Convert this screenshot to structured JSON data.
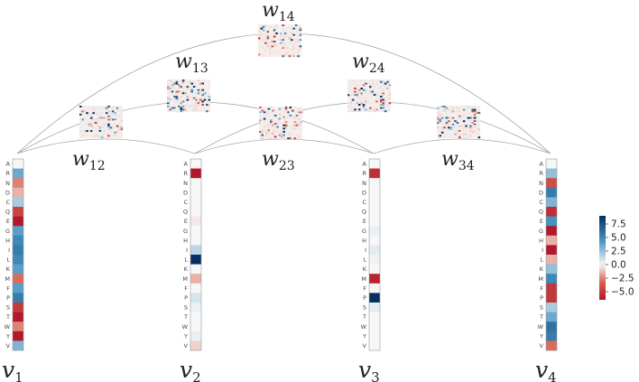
{
  "amino_acids": [
    "A",
    "R",
    "N",
    "D",
    "C",
    "Q",
    "E",
    "G",
    "H",
    "I",
    "L",
    "K",
    "M",
    "F",
    "P",
    "S",
    "T",
    "W",
    "Y",
    "V"
  ],
  "nodes": [
    {
      "id": "v1",
      "base": "v",
      "sub": "1",
      "values": [
        0,
        3.5,
        -2.5,
        -1.5,
        2.0,
        -4.5,
        -8.0,
        4.0,
        5.0,
        5.5,
        5.0,
        4.0,
        -3.0,
        4.0,
        5.5,
        -5.0,
        -8.5,
        -2.5,
        -8.5,
        3.0
      ]
    },
    {
      "id": "v2",
      "base": "v",
      "sub": "2",
      "values": [
        0,
        -8.5,
        0,
        0,
        0,
        0,
        -0.3,
        0,
        0,
        1.5,
        9.0,
        0,
        -1.5,
        0,
        0.8,
        0.3,
        0,
        0,
        0.3,
        -0.8
      ]
    },
    {
      "id": "v3",
      "base": "v",
      "sub": "3",
      "values": [
        0,
        -5.5,
        0,
        0,
        0,
        0,
        0,
        0.3,
        0,
        0.5,
        0.2,
        0,
        -6.0,
        0,
        9.0,
        0.5,
        0,
        0,
        0,
        0
      ]
    },
    {
      "id": "v4",
      "base": "v",
      "sub": "4",
      "values": [
        0,
        2.5,
        -4.0,
        5.5,
        3.0,
        -5.5,
        4.5,
        -8.0,
        -1.5,
        -8.5,
        -1.5,
        2.5,
        5.0,
        -5.0,
        -5.0,
        2.0,
        3.5,
        6.0,
        5.5,
        -3.0
      ]
    }
  ],
  "edges": [
    {
      "id": "w12",
      "base": "w",
      "sub": "12",
      "from": 0,
      "to": 1
    },
    {
      "id": "w13",
      "base": "w",
      "sub": "13",
      "from": 0,
      "to": 2
    },
    {
      "id": "w14",
      "base": "w",
      "sub": "14",
      "from": 0,
      "to": 3
    },
    {
      "id": "w23",
      "base": "w",
      "sub": "23",
      "from": 1,
      "to": 2
    },
    {
      "id": "w24",
      "base": "w",
      "sub": "24",
      "from": 1,
      "to": 3
    },
    {
      "id": "w34",
      "base": "w",
      "sub": "34",
      "from": 2,
      "to": 3
    }
  ],
  "colorbar": {
    "vmin": -6.5,
    "vmax": 9.0,
    "ticks": [
      "7.5",
      "5.0",
      "2.5",
      "0.0",
      "−2.5",
      "−5.0"
    ],
    "tick_values": [
      7.5,
      5.0,
      2.5,
      0.0,
      -2.5,
      -5.0
    ],
    "negative_color": "#b2182b",
    "neutral_color": "#f7f7f7",
    "positive_color": "#053061"
  }
}
